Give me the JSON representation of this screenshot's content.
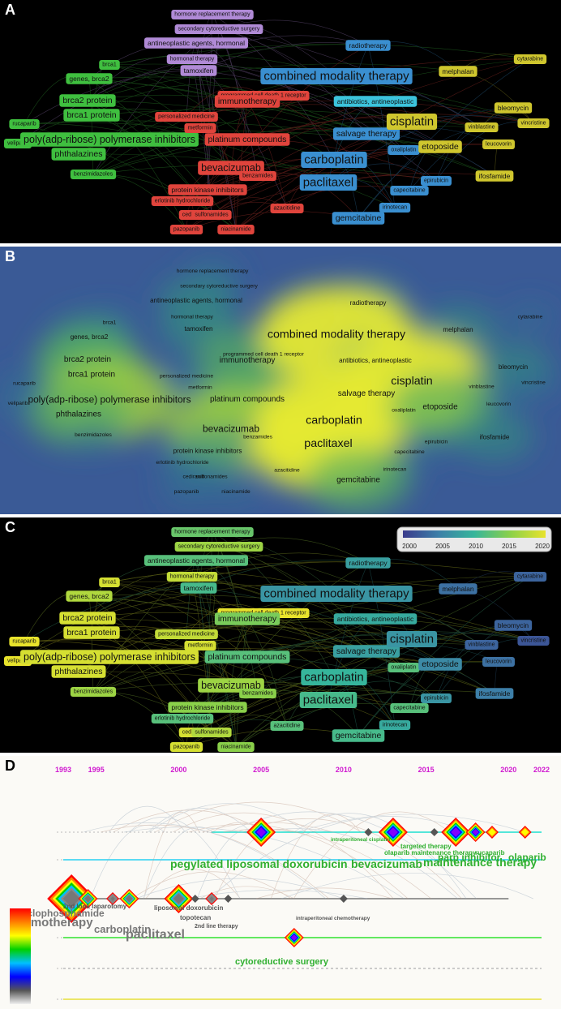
{
  "panels": {
    "a": {
      "label": "A"
    },
    "b": {
      "label": "B"
    },
    "c": {
      "label": "C"
    },
    "d": {
      "label": "D"
    }
  },
  "cluster_colors": {
    "purple": "#b08ad6",
    "green": "#3fbf3f",
    "red": "#e0443c",
    "blue": "#3a8fd0",
    "cyan": "#3cc4dc",
    "yellow": "#cfc62e"
  },
  "chart_data": [
    {
      "type": "network",
      "panel": "A",
      "nodes": [
        {
          "label": "hormone replacement therapy",
          "cluster": "purple",
          "weight": 1
        },
        {
          "label": "secondary cytoreductive surgery",
          "cluster": "purple",
          "weight": 1
        },
        {
          "label": "antineoplastic agents, hormonal",
          "cluster": "purple",
          "weight": 2
        },
        {
          "label": "hormonal therapy",
          "cluster": "purple",
          "weight": 1
        },
        {
          "label": "tamoxifen",
          "cluster": "purple",
          "weight": 2
        },
        {
          "label": "brca1",
          "cluster": "green",
          "weight": 1
        },
        {
          "label": "genes, brca2",
          "cluster": "green",
          "weight": 2
        },
        {
          "label": "brca2 protein",
          "cluster": "green",
          "weight": 3
        },
        {
          "label": "brca1 protein",
          "cluster": "green",
          "weight": 3
        },
        {
          "label": "rucaparib",
          "cluster": "green",
          "weight": 1
        },
        {
          "label": "veliparib",
          "cluster": "green",
          "weight": 1
        },
        {
          "label": "poly(adp-ribose) polymerase inhibitors",
          "cluster": "green",
          "weight": 4
        },
        {
          "label": "phthalazines",
          "cluster": "green",
          "weight": 3
        },
        {
          "label": "benzimidazoles",
          "cluster": "green",
          "weight": 1
        },
        {
          "label": "programmed cell death 1 receptor",
          "cluster": "red",
          "weight": 1
        },
        {
          "label": "personalized medicine",
          "cluster": "red",
          "weight": 1
        },
        {
          "label": "immunotherapy",
          "cluster": "red",
          "weight": 3
        },
        {
          "label": "metformin",
          "cluster": "red",
          "weight": 1
        },
        {
          "label": "platinum compounds",
          "cluster": "red",
          "weight": 3
        },
        {
          "label": "bevacizumab",
          "cluster": "red",
          "weight": 4
        },
        {
          "label": "benzamides",
          "cluster": "red",
          "weight": 1
        },
        {
          "label": "protein kinase inhibitors",
          "cluster": "red",
          "weight": 2
        },
        {
          "label": "erlotinib hydrochloride",
          "cluster": "red",
          "weight": 1
        },
        {
          "label": "cediranib",
          "cluster": "red",
          "weight": 1
        },
        {
          "label": "sulfonamides",
          "cluster": "red",
          "weight": 1
        },
        {
          "label": "azacitidine",
          "cluster": "red",
          "weight": 1
        },
        {
          "label": "pazopanib",
          "cluster": "red",
          "weight": 1
        },
        {
          "label": "niacinamide",
          "cluster": "red",
          "weight": 1
        },
        {
          "label": "radiotherapy",
          "cluster": "blue",
          "weight": 2
        },
        {
          "label": "combined modality therapy",
          "cluster": "blue",
          "weight": 5
        },
        {
          "label": "antibiotics, antineoplastic",
          "cluster": "cyan",
          "weight": 2
        },
        {
          "label": "salvage therapy",
          "cluster": "blue",
          "weight": 3
        },
        {
          "label": "carboplatin",
          "cluster": "blue",
          "weight": 5
        },
        {
          "label": "paclitaxel",
          "cluster": "blue",
          "weight": 5
        },
        {
          "label": "oxaliplatin",
          "cluster": "blue",
          "weight": 1
        },
        {
          "label": "epirubicin",
          "cluster": "blue",
          "weight": 1
        },
        {
          "label": "capecitabine",
          "cluster": "blue",
          "weight": 1
        },
        {
          "label": "irinotecan",
          "cluster": "blue",
          "weight": 1
        },
        {
          "label": "gemcitabine",
          "cluster": "blue",
          "weight": 3
        },
        {
          "label": "cytarabine",
          "cluster": "yellow",
          "weight": 1
        },
        {
          "label": "melphalan",
          "cluster": "yellow",
          "weight": 2
        },
        {
          "label": "cisplatin",
          "cluster": "yellow",
          "weight": 5
        },
        {
          "label": "bleomycin",
          "cluster": "yellow",
          "weight": 2
        },
        {
          "label": "vinblastine",
          "cluster": "yellow",
          "weight": 1
        },
        {
          "label": "vincristine",
          "cluster": "yellow",
          "weight": 1
        },
        {
          "label": "leucovorin",
          "cluster": "yellow",
          "weight": 1
        },
        {
          "label": "etoposide",
          "cluster": "yellow",
          "weight": 3
        },
        {
          "label": "ifosfamide",
          "cluster": "yellow",
          "weight": 2
        }
      ]
    },
    {
      "type": "heatmap",
      "panel": "B",
      "density_scale": [
        "#3a4a95",
        "#2e7d8e",
        "#39a26f",
        "#9acd3f",
        "#f3ee2e"
      ],
      "hotspots": [
        "combined modality therapy",
        "cisplatin",
        "carboplatin",
        "paclitaxel"
      ]
    },
    {
      "type": "network",
      "panel": "C",
      "legend": {
        "ticks": [
          "2000",
          "2005",
          "2010",
          "2015",
          "2020"
        ],
        "placement": "top-right"
      },
      "year_scale": [
        "#3b3b8c",
        "#3d7fa8",
        "#36b59b",
        "#8ad04a",
        "#e8e32c"
      ],
      "node_years": {
        "hormone replacement therapy": 2013,
        "secondary cytoreductive surgery": 2016,
        "antineoplastic agents, hormonal": 2012,
        "hormonal therapy": 2018,
        "tamoxifen": 2011,
        "brca1": 2019,
        "genes, brca2": 2017,
        "brca2 protein": 2019,
        "brca1 protein": 2019,
        "rucaparib": 2020,
        "veliparib": 2020,
        "poly(adp-ribose) polymerase inhibitors": 2019,
        "phthalazines": 2019,
        "benzimidazoles": 2016,
        "programmed cell death 1 receptor": 2020,
        "personalized medicine": 2018,
        "immunotherapy": 2014,
        "metformin": 2019,
        "platinum compounds": 2012,
        "bevacizumab": 2016,
        "benzamides": 2015,
        "protein kinase inhibitors": 2015,
        "erlotinib hydrochloride": 2012,
        "cediranib": 2019,
        "sulfonamides": 2017,
        "azacitidine": 2012,
        "pazopanib": 2019,
        "niacinamide": 2015,
        "radiotherapy": 2008,
        "combined modality therapy": 2007,
        "antibiotics, antineoplastic": 2009,
        "salvage therapy": 2008,
        "carboplatin": 2010,
        "paclitaxel": 2011,
        "oxaliplatin": 2012,
        "epirubicin": 2007,
        "capecitabine": 2012,
        "irinotecan": 2009,
        "gemcitabine": 2011,
        "cytarabine": 2003,
        "melphalan": 2004,
        "cisplatin": 2007,
        "bleomycin": 2003,
        "vinblastine": 2003,
        "vincristine": 2002,
        "leucovorin": 2004,
        "etoposide": 2006,
        "ifosfamide": 2005
      }
    },
    {
      "type": "timeline",
      "panel": "D",
      "years": [
        "1993",
        "1995",
        "2000",
        "2005",
        "2010",
        "2015",
        "2020",
        "2022"
      ],
      "clusters": [
        {
          "name": "pegylated liposomal doxorubicin",
          "terms": [
            {
              "label": "pegylated liposomal doxorubicin",
              "year": 2005,
              "size": 4
            },
            {
              "label": "intraperitoneal cisplatin",
              "year": 2011.5,
              "size": 1
            },
            {
              "label": "bevacizumab",
              "year": 2013,
              "size": 4
            },
            {
              "label": "targeted therapy",
              "year": 2015.5,
              "size": 1
            },
            {
              "label": "olaparib maintenance therapy",
              "year": 2017,
              "size": 1
            },
            {
              "label": "maintenance therapy",
              "year": 2016.8,
              "size": 4
            },
            {
              "label": "parp inhibitor",
              "year": 2018,
              "size": 3
            },
            {
              "label": "rucaparib",
              "year": 2019,
              "size": 2
            },
            {
              "label": "olaparib",
              "year": 2021,
              "size": 2
            }
          ]
        },
        {
          "name": "chemotherapy",
          "terms": [
            {
              "label": "chemotherapy",
              "year": 1993.5,
              "size": 5
            },
            {
              "label": "cyclophosphamide",
              "year": 1994.5,
              "size": 3
            },
            {
              "label": "2nd look laparotomy",
              "year": 1996,
              "size": 2
            },
            {
              "label": "carboplatin",
              "year": 1997,
              "size": 3
            },
            {
              "label": "paclitaxel",
              "year": 2000,
              "size": 4
            },
            {
              "label": "liposomal doxorubicin",
              "year": 2001,
              "size": 1
            },
            {
              "label": "topotecan",
              "year": 2002,
              "size": 2
            },
            {
              "label": "2nd line therapy",
              "year": 2003,
              "size": 1
            },
            {
              "label": "intraperitoneal chemotherapy",
              "year": 2010,
              "size": 1
            }
          ]
        },
        {
          "name": "cytoreductive surgery",
          "terms": [
            {
              "label": "cytoreductive surgery",
              "year": 2007,
              "size": 3
            }
          ]
        }
      ]
    }
  ],
  "timeline_labels": {
    "pegylated": "pegylated liposomal doxorubicin",
    "bevacizumab": "bevacizumab",
    "maintenance": "maintenance therapy",
    "parp": "parp inhibitor",
    "olaparib": "olaparib",
    "targeted": "targeted therapy",
    "olaparib_mt": "olaparib maintenance therapy",
    "rucaparib": "rucaparib",
    "ip_cisplatin": "intraperitoneal cisplatin",
    "chemotherapy": "chemotherapy",
    "cyclophosphamide": "cyclophosphamide",
    "second_look": "2nd look laparotomy",
    "carboplatin": "carboplatin",
    "paclitaxel": "paclitaxel",
    "lipo_dox": "liposomal doxorubicin",
    "topotecan": "topotecan",
    "second_line": "2nd line therapy",
    "ip_chemo": "intraperitoneal chemotherapy",
    "cytoreductive": "cytoreductive surgery"
  }
}
